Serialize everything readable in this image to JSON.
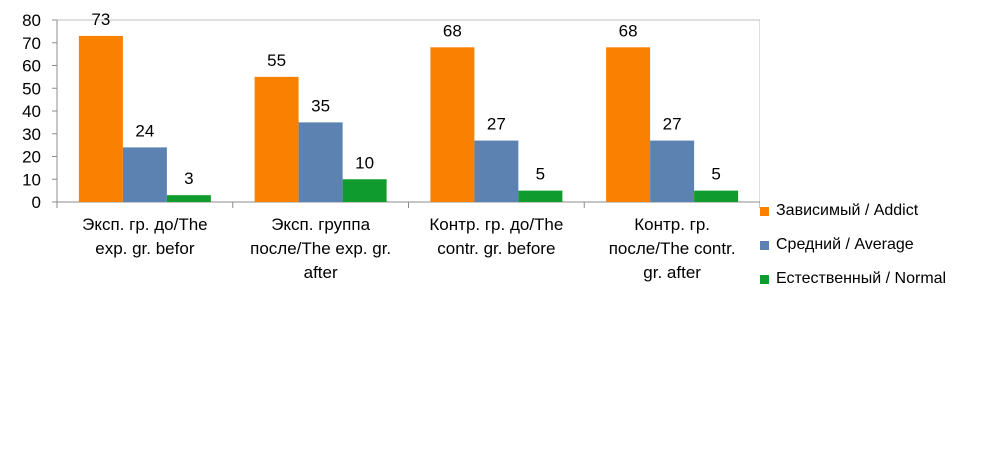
{
  "chart_data": {
    "type": "bar",
    "categories": [
      [
        "Эксп. гр. до/The",
        "exp. gr. befor"
      ],
      [
        "Эксп. группа",
        "после/The exp. gr.",
        "after"
      ],
      [
        "Контр. гр. до/The",
        "contr. gr. before"
      ],
      [
        "Контр. гр.",
        "после/The contr.",
        "gr. after"
      ]
    ],
    "series": [
      {
        "name": "Зависимый / Addict",
        "color": "#F98000",
        "values": [
          73,
          55,
          68,
          68
        ]
      },
      {
        "name": "Средний / Average",
        "color": "#5B82B1",
        "values": [
          24,
          35,
          27,
          27
        ]
      },
      {
        "name": "Естественный / Normal",
        "color": "#109B2E",
        "values": [
          3,
          10,
          5,
          5
        ]
      }
    ],
    "ylim": [
      0,
      80
    ],
    "yticks": [
      0,
      10,
      20,
      30,
      40,
      50,
      60,
      70,
      80
    ],
    "grid": false,
    "legend_position": "right",
    "title": "",
    "xlabel": "",
    "ylabel": ""
  }
}
